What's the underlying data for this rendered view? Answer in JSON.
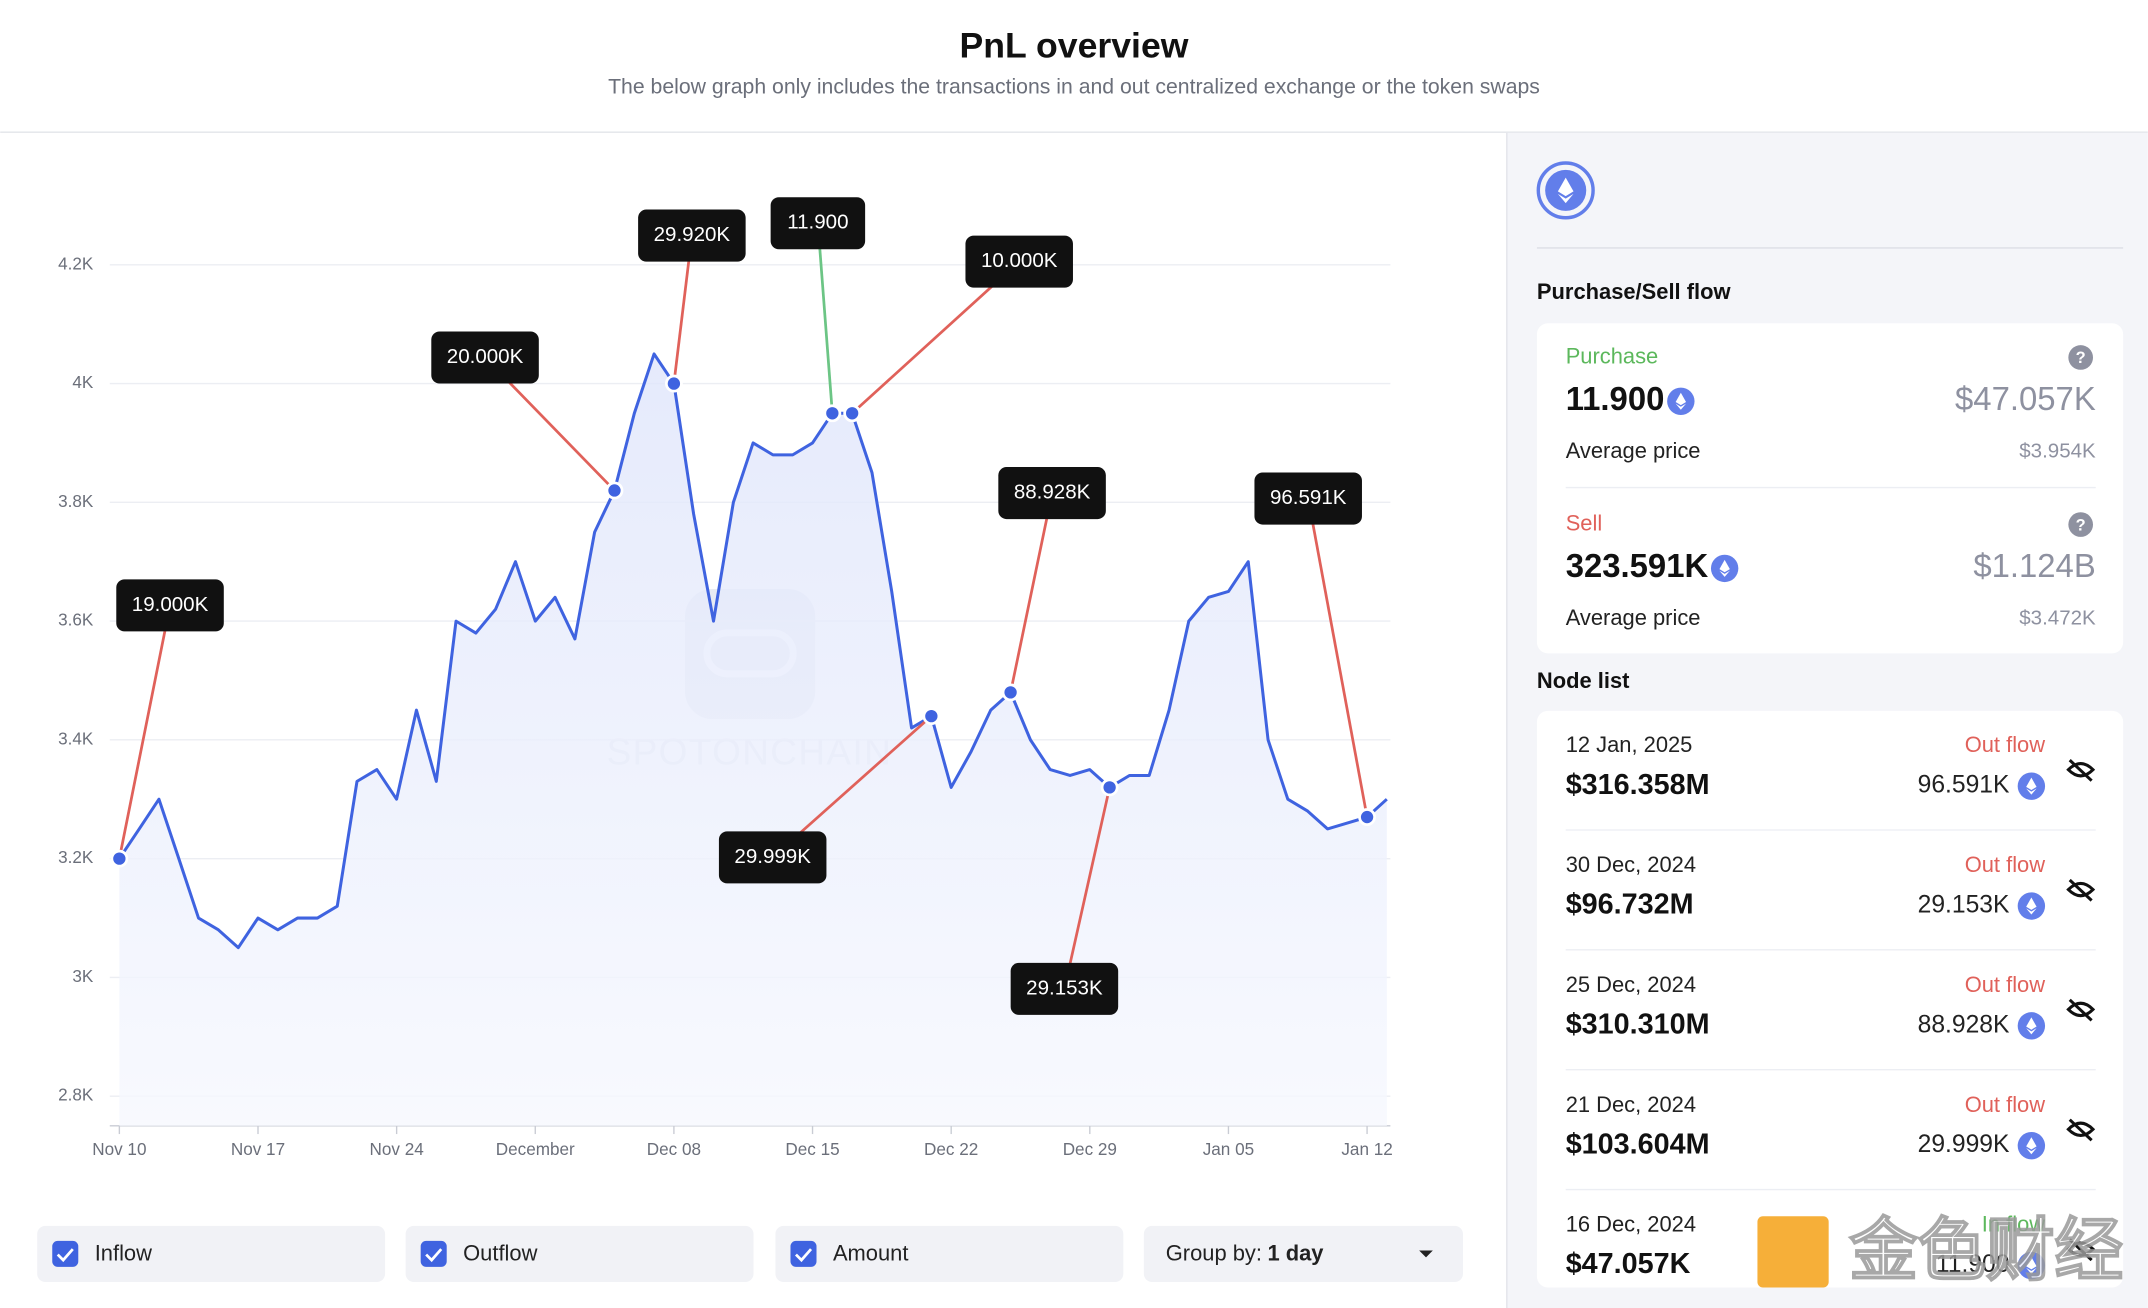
{
  "header": {
    "title": "PnL overview",
    "subtitle": "The below graph only includes the transactions in and out centralized exchange or the token swaps"
  },
  "chart_data": {
    "type": "line",
    "color": "#3f63e0",
    "grid": true,
    "watermark": "SPOTONCHAIN",
    "categories": [
      "Nov 10",
      null,
      null,
      null,
      null,
      null,
      null,
      "Nov 17",
      null,
      null,
      null,
      null,
      null,
      null,
      "Nov 24",
      null,
      null,
      null,
      null,
      null,
      null,
      "December",
      null,
      null,
      null,
      null,
      null,
      null,
      "Dec 08",
      null,
      null,
      null,
      null,
      null,
      null,
      "Dec 15",
      null,
      null,
      null,
      null,
      null,
      null,
      "Dec 22",
      null,
      null,
      null,
      null,
      null,
      null,
      "Dec 29",
      null,
      null,
      null,
      null,
      null,
      null,
      "Jan 05",
      null,
      null,
      null,
      null,
      null,
      null,
      "Jan 12",
      null
    ],
    "values": [
      3200,
      3250,
      3300,
      3200,
      3100,
      3080,
      3050,
      3100,
      3080,
      3100,
      3100,
      3120,
      3330,
      3350,
      3300,
      3450,
      3330,
      3600,
      3580,
      3620,
      3700,
      3600,
      3640,
      3570,
      3750,
      3820,
      3950,
      4050,
      4000,
      3780,
      3600,
      3800,
      3900,
      3880,
      3880,
      3900,
      3950,
      3950,
      3850,
      3650,
      3420,
      3440,
      3320,
      3380,
      3450,
      3480,
      3400,
      3350,
      3340,
      3350,
      3320,
      3340,
      3340,
      3450,
      3600,
      3640,
      3650,
      3700,
      3400,
      3300,
      3280,
      3250,
      3260,
      3270,
      3300
    ],
    "ylim": [
      2750,
      4300
    ],
    "yticks": [
      {
        "value": 2800,
        "label": "2.8K"
      },
      {
        "value": 3000,
        "label": "3K"
      },
      {
        "value": 3200,
        "label": "3.2K"
      },
      {
        "value": 3400,
        "label": "3.4K"
      },
      {
        "value": 3600,
        "label": "3.6K"
      },
      {
        "value": 3800,
        "label": "3.8K"
      },
      {
        "value": 4000,
        "label": "4K"
      },
      {
        "value": 4200,
        "label": "4.2K"
      }
    ],
    "nodes": [
      {
        "name": "Outflow",
        "color": "#e0615a",
        "values": [
          19000,
          null,
          null,
          null,
          null,
          null,
          null,
          null,
          null,
          null,
          null,
          null,
          null,
          null,
          null,
          null,
          null,
          null,
          null,
          null,
          null,
          null,
          null,
          null,
          null,
          20000,
          null,
          null,
          29920,
          null,
          null,
          null,
          null,
          null,
          null,
          null,
          null,
          10000,
          null,
          null,
          null,
          29999,
          null,
          null,
          null,
          88928,
          null,
          null,
          null,
          null,
          29153,
          null,
          null,
          null,
          null,
          null,
          null,
          null,
          null,
          null,
          null,
          null,
          null,
          96591,
          null
        ],
        "value_labels": [
          "19.000K",
          null,
          null,
          null,
          null,
          null,
          null,
          null,
          null,
          null,
          null,
          null,
          null,
          null,
          null,
          null,
          null,
          null,
          null,
          null,
          null,
          null,
          null,
          null,
          null,
          "20.000K",
          null,
          null,
          "29.920K",
          null,
          null,
          null,
          null,
          null,
          null,
          null,
          null,
          "10.000K",
          null,
          null,
          null,
          "29.999K",
          null,
          null,
          null,
          "88.928K",
          null,
          null,
          null,
          null,
          "29.153K",
          null,
          null,
          null,
          null,
          null,
          null,
          null,
          null,
          null,
          null,
          null,
          null,
          "96.591K",
          null
        ]
      },
      {
        "name": "Inflow",
        "color": "#6cc585",
        "values": [
          null,
          null,
          null,
          null,
          null,
          null,
          null,
          null,
          null,
          null,
          null,
          null,
          null,
          null,
          null,
          null,
          null,
          null,
          null,
          null,
          null,
          null,
          null,
          null,
          null,
          null,
          null,
          null,
          null,
          null,
          null,
          null,
          null,
          null,
          null,
          null,
          11.9,
          null,
          null,
          null,
          null,
          null,
          null,
          null,
          null,
          null,
          null,
          null,
          null,
          null,
          null,
          null,
          null,
          null,
          null,
          null,
          null,
          null,
          null,
          null,
          null,
          null,
          null,
          null,
          null
        ],
        "value_labels": [
          null,
          null,
          null,
          null,
          null,
          null,
          null,
          null,
          null,
          null,
          null,
          null,
          null,
          null,
          null,
          null,
          null,
          null,
          null,
          null,
          null,
          null,
          null,
          null,
          null,
          null,
          null,
          null,
          null,
          null,
          null,
          null,
          null,
          null,
          null,
          null,
          "11.900",
          null,
          null,
          null,
          null,
          null,
          null,
          null,
          null,
          null,
          null,
          null,
          null,
          null,
          null,
          null,
          null,
          null,
          null,
          null,
          null,
          null,
          null,
          null,
          null,
          null,
          null,
          null,
          null
        ]
      }
    ]
  },
  "controls": {
    "checkboxes": [
      "Inflow",
      "Outflow",
      "Amount"
    ],
    "group_label": "Group by:",
    "group_value": "1 day"
  },
  "panel": {
    "flow_title": "Purchase/Sell flow",
    "purchase": {
      "label": "Purchase",
      "amount": "11.900",
      "usd": "$47.057K",
      "avg_label": "Average price",
      "avg": "$3.954K"
    },
    "sell": {
      "label": "Sell",
      "amount": "323.591K",
      "usd": "$1.124B",
      "avg_label": "Average price",
      "avg": "$3.472K"
    },
    "node_title": "Node list",
    "nodes": [
      {
        "date": "12 Jan, 2025",
        "usd": "$316.358M",
        "flow": "Out flow",
        "amount": "96.591K"
      },
      {
        "date": "30 Dec, 2024",
        "usd": "$96.732M",
        "flow": "Out flow",
        "amount": "29.153K"
      },
      {
        "date": "25 Dec, 2024",
        "usd": "$310.310M",
        "flow": "Out flow",
        "amount": "88.928K"
      },
      {
        "date": "21 Dec, 2024",
        "usd": "$103.604M",
        "flow": "Out flow",
        "amount": "29.999K"
      },
      {
        "date": "16 Dec, 2024",
        "usd": "$47.057K",
        "flow": "In flow",
        "amount": "11.900"
      }
    ]
  },
  "watermark": "金色财经"
}
